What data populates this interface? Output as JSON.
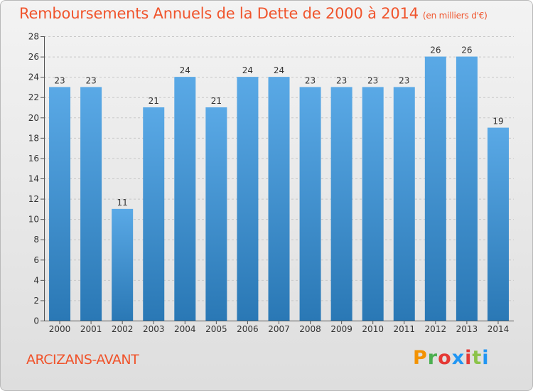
{
  "header": {
    "title": "Remboursements Annuels de la Dette de 2000 à 2014",
    "unit": "(en milliers d'€)"
  },
  "footer": {
    "town": "ARCIZANS-AVANT",
    "logo": "Proxiti"
  },
  "colors": {
    "bar_top": "#5aa9e6",
    "bar_bottom": "#2a78b5",
    "title": "#f0542c",
    "logo_letters": [
      "#f39200",
      "#4caf50",
      "#e53935",
      "#2196f3",
      "#e53935",
      "#8bc34a",
      "#2196f3"
    ]
  },
  "chart_data": {
    "type": "bar",
    "title": "Remboursements Annuels de la Dette de 2000 à 2014",
    "xlabel": "",
    "ylabel": "",
    "categories": [
      "2000",
      "2001",
      "2002",
      "2003",
      "2004",
      "2005",
      "2006",
      "2007",
      "2008",
      "2009",
      "2010",
      "2011",
      "2012",
      "2013",
      "2014"
    ],
    "values": [
      23,
      23,
      11,
      21,
      24,
      21,
      24,
      24,
      23,
      23,
      23,
      23,
      26,
      26,
      19
    ],
    "ylim": [
      0,
      28
    ],
    "yticks": [
      0,
      2,
      4,
      6,
      8,
      10,
      12,
      14,
      16,
      18,
      20,
      22,
      24,
      26,
      28
    ],
    "grid": "horizontal"
  }
}
